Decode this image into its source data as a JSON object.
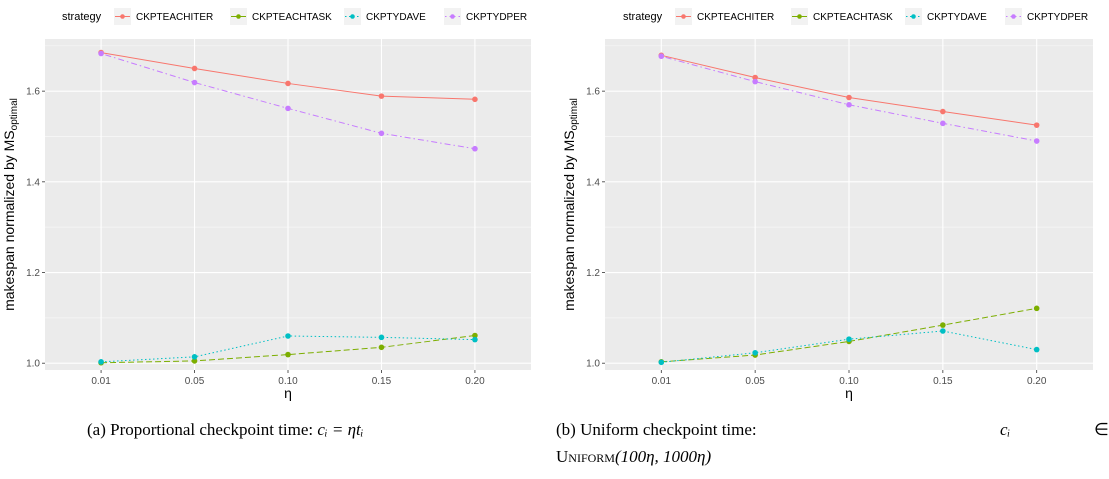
{
  "legend": {
    "title": "strategy",
    "entries": [
      {
        "name": "CKPTEACHITER",
        "color": "#F8766D",
        "dash": "solid"
      },
      {
        "name": "CKPTEACHTASK",
        "color": "#7CAE00",
        "dash": "dashed"
      },
      {
        "name": "CKPTYDAVE",
        "color": "#00BFC4",
        "dash": "dotted"
      },
      {
        "name": "CKPTYDPER",
        "color": "#C77CFF",
        "dash": "dotdash"
      }
    ]
  },
  "captions": {
    "a": {
      "prefix": "(a) Proportional checkpoint time: ",
      "math": "cᵢ = ηtᵢ"
    },
    "b": {
      "prefix": "(b)    Uniform    checkpoint    time:",
      "math_ci": "cᵢ",
      "elem": "∈",
      "line2_sc": "Uniform",
      "line2_rest": "(100η, 1000η)"
    }
  },
  "chart_data": [
    {
      "type": "line",
      "xlabel": "η",
      "ylabel": "makespan normalized by MS",
      "ylabel_sub": "optimal",
      "categories": [
        "0.01",
        "0.05",
        "0.10",
        "0.15",
        "0.20"
      ],
      "y_ticks": [
        "1.0",
        "1.2",
        "1.4",
        "1.6"
      ],
      "ylim": [
        0.985,
        1.715
      ],
      "series": [
        {
          "name": "CKPTEACHITER",
          "values": [
            1.685,
            1.65,
            1.617,
            1.589,
            1.582
          ]
        },
        {
          "name": "CKPTEACHTASK",
          "values": [
            1.001,
            1.005,
            1.019,
            1.035,
            1.061
          ]
        },
        {
          "name": "CKPTYDAVE",
          "values": [
            1.003,
            1.014,
            1.06,
            1.057,
            1.052
          ]
        },
        {
          "name": "CKPTYDPER",
          "values": [
            1.683,
            1.619,
            1.562,
            1.507,
            1.473
          ]
        }
      ]
    },
    {
      "type": "line",
      "xlabel": "η",
      "ylabel": "makespan normalized by MS",
      "ylabel_sub": "optimal",
      "categories": [
        "0.01",
        "0.05",
        "0.10",
        "0.15",
        "0.20"
      ],
      "y_ticks": [
        "1.0",
        "1.2",
        "1.4",
        "1.6"
      ],
      "ylim": [
        0.985,
        1.715
      ],
      "series": [
        {
          "name": "CKPTEACHITER",
          "values": [
            1.679,
            1.63,
            1.586,
            1.555,
            1.525
          ]
        },
        {
          "name": "CKPTEACHTASK",
          "values": [
            1.003,
            1.018,
            1.048,
            1.084,
            1.121
          ]
        },
        {
          "name": "CKPTYDAVE",
          "values": [
            1.002,
            1.023,
            1.053,
            1.071,
            1.03
          ]
        },
        {
          "name": "CKPTYDPER",
          "values": [
            1.677,
            1.621,
            1.57,
            1.529,
            1.49
          ]
        }
      ]
    }
  ]
}
